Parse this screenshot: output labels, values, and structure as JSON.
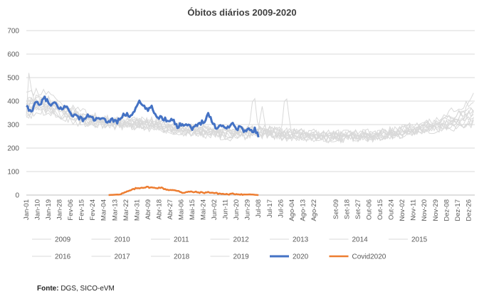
{
  "source_label": "Fonte:",
  "source_text": " DGS, SICO-eVM",
  "colors": {
    "history": "#d9d9d9",
    "y2020": "#4472c4",
    "covid": "#ed7d31",
    "grid": "#d9d9d9",
    "axis": "#bfbfbf"
  },
  "chart_data": {
    "type": "line",
    "title": "Óbitos diários 2009-2020",
    "xlabel": "",
    "ylabel": "",
    "ylim": [
      0,
      700
    ],
    "yticks": [
      0,
      100,
      200,
      300,
      400,
      500,
      600,
      700
    ],
    "x_range": [
      1,
      366
    ],
    "x_tick_labels": [
      "Jan-01",
      "Jan-10",
      "Jan-19",
      "Jan-28",
      "Fev-06",
      "Fev-15",
      "Fev-24",
      "Mar-04",
      "Mar-13",
      "Mar-22",
      "Mar-31",
      "Abr-09",
      "Abr-18",
      "Abr-27",
      "Mai-06",
      "Mai-15",
      "Mai-24",
      "Jun-02",
      "Jun-11",
      "Jun-20",
      "Jun-29",
      "Jul-08",
      "Jul-17",
      "Jul-26",
      "Ago-04",
      "Ago-13",
      "Ago-22",
      "Set-09",
      "Set-18",
      "Set-27",
      "Out-06",
      "Out-15",
      "Out-24",
      "Nov-02",
      "Nov-11",
      "Nov-20",
      "Nov-29",
      "Dez-08",
      "Dez-17",
      "Dez-26"
    ],
    "x_tick_days": [
      1,
      10,
      19,
      28,
      37,
      46,
      55,
      64,
      73,
      82,
      91,
      100,
      109,
      118,
      127,
      136,
      145,
      154,
      163,
      172,
      181,
      190,
      199,
      208,
      217,
      226,
      235,
      253,
      262,
      271,
      280,
      289,
      298,
      307,
      316,
      325,
      334,
      343,
      352,
      361
    ],
    "legend": [
      "2009",
      "2010",
      "2011",
      "2012",
      "2013",
      "2014",
      "2015",
      "2016",
      "2017",
      "2018",
      "2019",
      "2020",
      "Covid2020"
    ],
    "series_history_profile": [
      [
        1,
        370
      ],
      [
        10,
        390
      ],
      [
        19,
        385
      ],
      [
        28,
        360
      ],
      [
        40,
        335
      ],
      [
        55,
        315
      ],
      [
        75,
        305
      ],
      [
        91,
        305
      ],
      [
        105,
        300
      ],
      [
        120,
        285
      ],
      [
        135,
        275
      ],
      [
        150,
        270
      ],
      [
        165,
        262
      ],
      [
        175,
        262
      ],
      [
        185,
        268
      ],
      [
        195,
        270
      ],
      [
        205,
        262
      ],
      [
        215,
        258
      ],
      [
        225,
        256
      ],
      [
        240,
        252
      ],
      [
        260,
        250
      ],
      [
        280,
        252
      ],
      [
        300,
        262
      ],
      [
        315,
        275
      ],
      [
        330,
        290
      ],
      [
        345,
        312
      ],
      [
        355,
        325
      ],
      [
        366,
        345
      ]
    ],
    "series_2020_keypoints": [
      [
        1,
        375
      ],
      [
        5,
        352
      ],
      [
        8,
        398
      ],
      [
        12,
        378
      ],
      [
        16,
        418
      ],
      [
        20,
        382
      ],
      [
        24,
        390
      ],
      [
        28,
        365
      ],
      [
        33,
        378
      ],
      [
        38,
        345
      ],
      [
        42,
        335
      ],
      [
        47,
        322
      ],
      [
        52,
        338
      ],
      [
        57,
        320
      ],
      [
        62,
        325
      ],
      [
        66,
        312
      ],
      [
        71,
        322
      ],
      [
        75,
        312
      ],
      [
        78,
        332
      ],
      [
        82,
        344
      ],
      [
        86,
        336
      ],
      [
        89,
        360
      ],
      [
        92,
        398
      ],
      [
        95,
        385
      ],
      [
        99,
        362
      ],
      [
        103,
        372
      ],
      [
        107,
        335
      ],
      [
        112,
        328
      ],
      [
        116,
        318
      ],
      [
        120,
        326
      ],
      [
        124,
        288
      ],
      [
        128,
        306
      ],
      [
        133,
        298
      ],
      [
        137,
        282
      ],
      [
        141,
        302
      ],
      [
        146,
        318
      ],
      [
        149,
        345
      ],
      [
        152,
        316
      ],
      [
        156,
        282
      ],
      [
        160,
        302
      ],
      [
        164,
        282
      ],
      [
        168,
        308
      ],
      [
        172,
        280
      ],
      [
        175,
        295
      ],
      [
        178,
        268
      ],
      [
        181,
        282
      ],
      [
        184,
        270
      ],
      [
        187,
        280
      ],
      [
        190,
        255
      ]
    ],
    "series_covid_keypoints": [
      [
        68,
        0
      ],
      [
        75,
        2
      ],
      [
        80,
        8
      ],
      [
        85,
        18
      ],
      [
        90,
        28
      ],
      [
        95,
        32
      ],
      [
        100,
        34
      ],
      [
        105,
        30
      ],
      [
        110,
        32
      ],
      [
        115,
        24
      ],
      [
        120,
        20
      ],
      [
        125,
        18
      ],
      [
        128,
        10
      ],
      [
        130,
        12
      ],
      [
        135,
        14
      ],
      [
        140,
        12
      ],
      [
        145,
        10
      ],
      [
        150,
        12
      ],
      [
        155,
        8
      ],
      [
        160,
        5
      ],
      [
        165,
        3
      ],
      [
        170,
        5
      ],
      [
        175,
        4
      ],
      [
        180,
        2
      ],
      [
        183,
        3
      ],
      [
        190,
        0
      ]
    ]
  }
}
